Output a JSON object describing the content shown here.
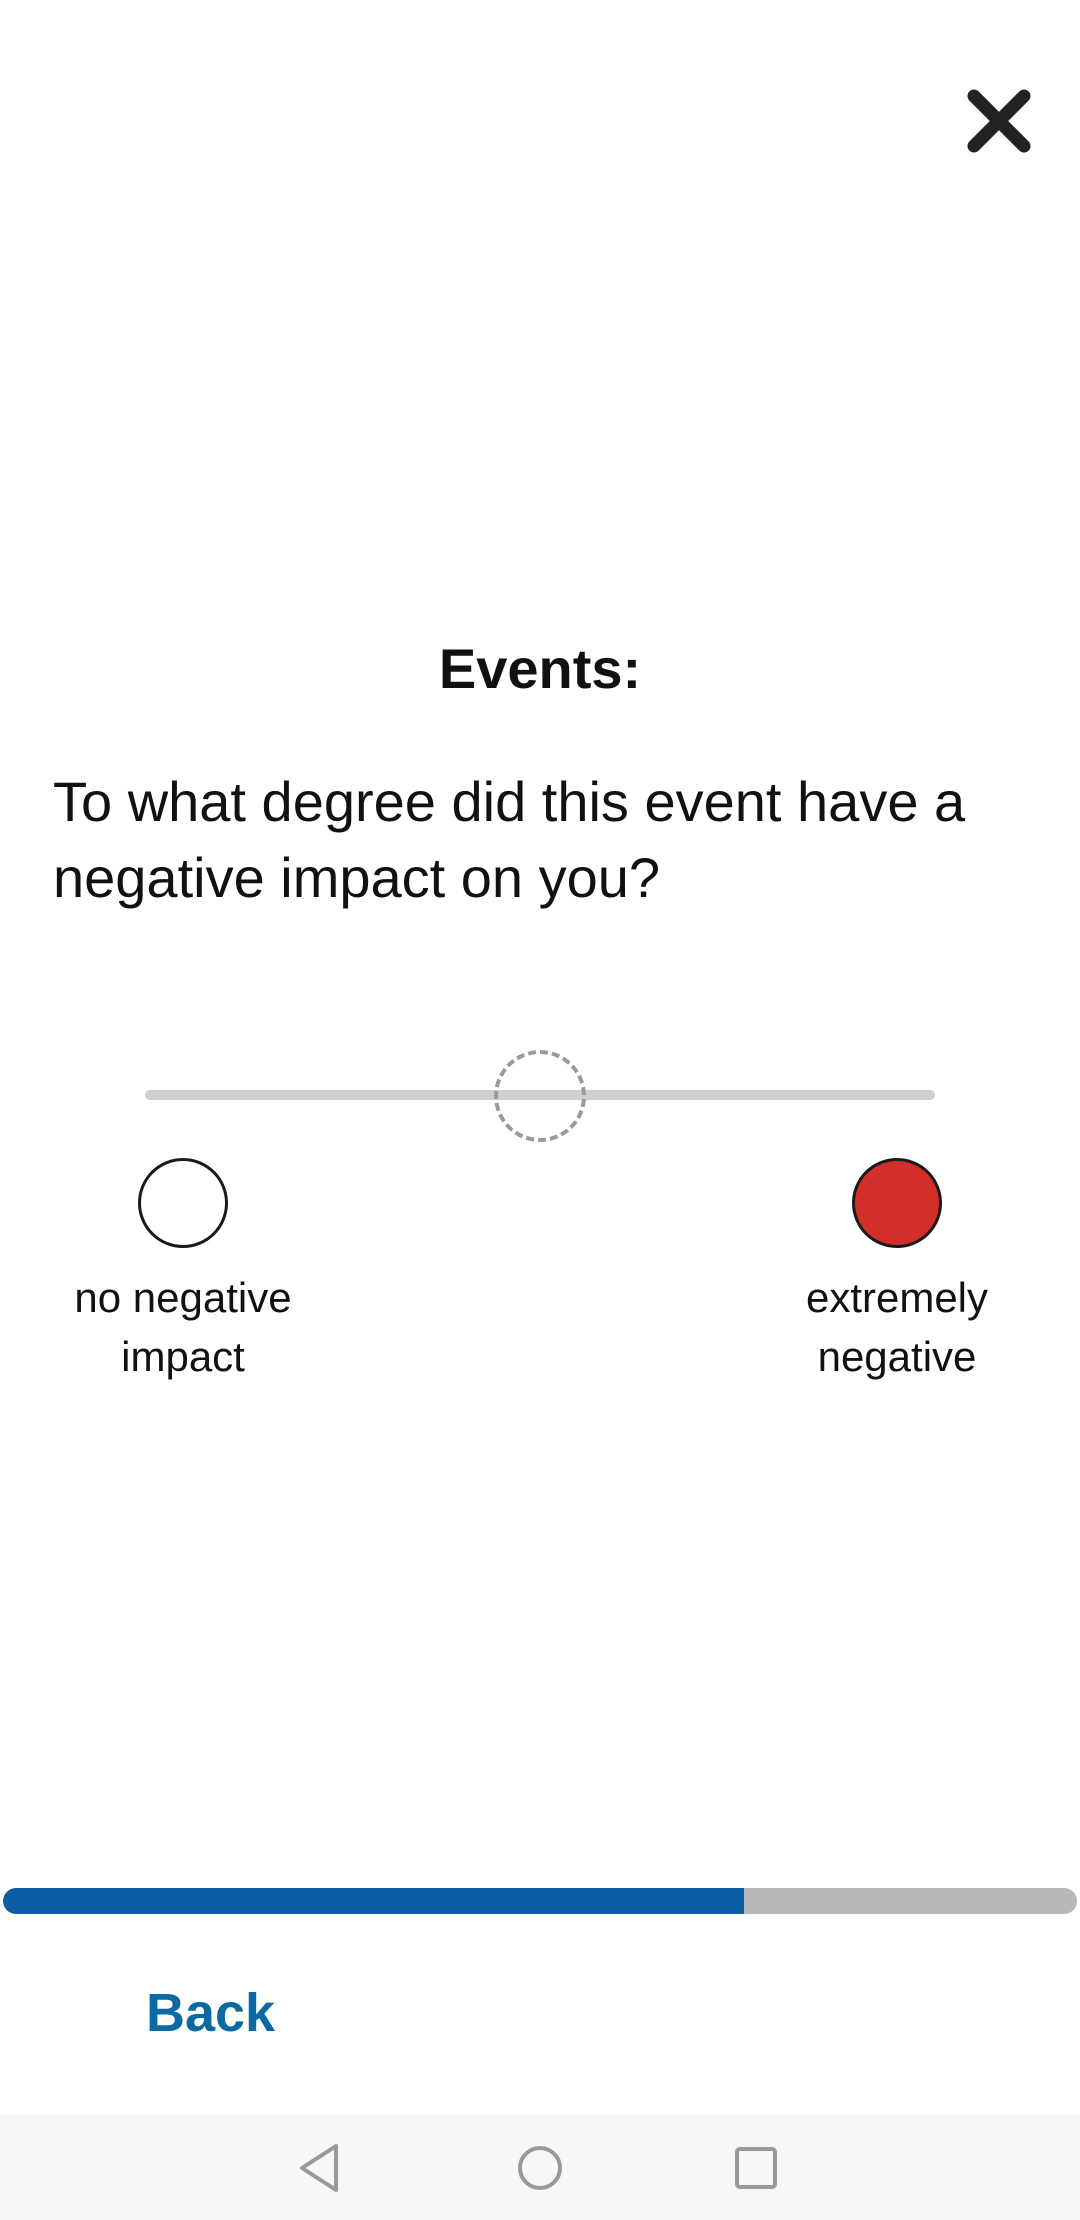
{
  "header": {
    "close_icon": "close-x-icon"
  },
  "survey": {
    "title": "Events:",
    "question": "To what degree did this event have a negative impact on you?",
    "slider": {
      "value": 0.5
    },
    "anchors": {
      "low": {
        "label": "no negative\nimpact",
        "color": "#ffffff"
      },
      "high": {
        "label": "extremely\nnegative",
        "color": "#d32f2a"
      }
    }
  },
  "progress": {
    "fraction": 0.69,
    "fill_color": "#0b5fa5",
    "track_color": "#b8b8b8"
  },
  "footer": {
    "back_label": "Back"
  },
  "system_nav": {
    "icons": [
      "nav-back-icon",
      "nav-home-icon",
      "nav-recents-icon"
    ]
  }
}
